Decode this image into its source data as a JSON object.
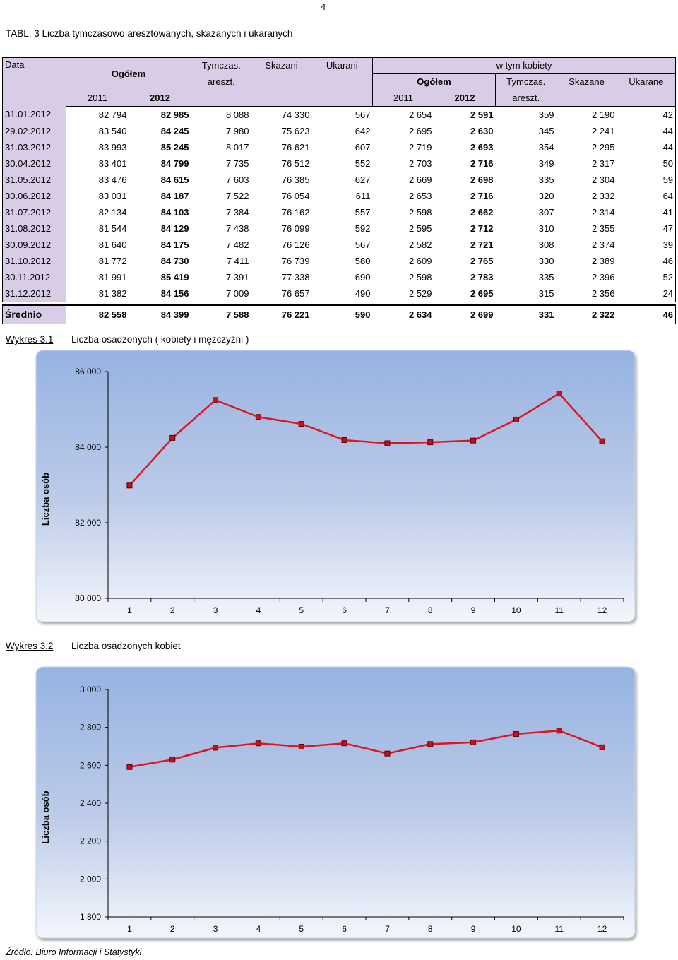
{
  "page_number": "4",
  "table": {
    "title": "TABL. 3 Liczba tymczasowo aresztowanych, skazanych i ukaranych",
    "headers": {
      "data": "Data",
      "ogolem": "Ogółem",
      "tymczas_1": "Tymczas.",
      "tymczas_2": "areszt.",
      "skazani": "Skazani",
      "ukarani": "Ukarani",
      "w_tym_kobiety": "w tym kobiety",
      "k_ogolem": "Ogółem",
      "k_tymczas_1": "Tymczas.",
      "k_tymczas_2": "areszt.",
      "k_skazane": "Skazane",
      "k_ukarane": "Ukarane",
      "y2011": "2011",
      "y2012": "2012",
      "k_y2011": "2011",
      "k_y2012": "2012"
    },
    "rows": [
      {
        "date": "31.01.2012",
        "o2011": "82 794",
        "o2012": "82 985",
        "tym": "8 088",
        "ska": "74 330",
        "uka": "567",
        "k2011": "2 654",
        "k2012": "2 591",
        "ktym": "359",
        "kska": "2 190",
        "kuka": "42"
      },
      {
        "date": "29.02.2012",
        "o2011": "83 540",
        "o2012": "84 245",
        "tym": "7 980",
        "ska": "75 623",
        "uka": "642",
        "k2011": "2 695",
        "k2012": "2 630",
        "ktym": "345",
        "kska": "2 241",
        "kuka": "44"
      },
      {
        "date": "31.03.2012",
        "o2011": "83 993",
        "o2012": "85 245",
        "tym": "8 017",
        "ska": "76 621",
        "uka": "607",
        "k2011": "2 719",
        "k2012": "2 693",
        "ktym": "354",
        "kska": "2 295",
        "kuka": "44"
      },
      {
        "date": "30.04.2012",
        "o2011": "83 401",
        "o2012": "84 799",
        "tym": "7 735",
        "ska": "76 512",
        "uka": "552",
        "k2011": "2 703",
        "k2012": "2 716",
        "ktym": "349",
        "kska": "2 317",
        "kuka": "50"
      },
      {
        "date": "31.05.2012",
        "o2011": "83 476",
        "o2012": "84 615",
        "tym": "7 603",
        "ska": "76 385",
        "uka": "627",
        "k2011": "2 669",
        "k2012": "2 698",
        "ktym": "335",
        "kska": "2 304",
        "kuka": "59"
      },
      {
        "date": "30.06.2012",
        "o2011": "83 031",
        "o2012": "84 187",
        "tym": "7 522",
        "ska": "76 054",
        "uka": "611",
        "k2011": "2 653",
        "k2012": "2 716",
        "ktym": "320",
        "kska": "2 332",
        "kuka": "64"
      },
      {
        "date": "31.07.2012",
        "o2011": "82 134",
        "o2012": "84 103",
        "tym": "7 384",
        "ska": "76 162",
        "uka": "557",
        "k2011": "2 598",
        "k2012": "2 662",
        "ktym": "307",
        "kska": "2 314",
        "kuka": "41"
      },
      {
        "date": "31.08.2012",
        "o2011": "81 544",
        "o2012": "84 129",
        "tym": "7 438",
        "ska": "76 099",
        "uka": "592",
        "k2011": "2 595",
        "k2012": "2 712",
        "ktym": "310",
        "kska": "2 355",
        "kuka": "47"
      },
      {
        "date": "30.09.2012",
        "o2011": "81 640",
        "o2012": "84 175",
        "tym": "7 482",
        "ska": "76 126",
        "uka": "567",
        "k2011": "2 582",
        "k2012": "2 721",
        "ktym": "308",
        "kska": "2 374",
        "kuka": "39"
      },
      {
        "date": "31.10.2012",
        "o2011": "81 772",
        "o2012": "84 730",
        "tym": "7 411",
        "ska": "76 739",
        "uka": "580",
        "k2011": "2 609",
        "k2012": "2 765",
        "ktym": "330",
        "kska": "2 389",
        "kuka": "46"
      },
      {
        "date": "30.11.2012",
        "o2011": "81 991",
        "o2012": "85 419",
        "tym": "7 391",
        "ska": "77 338",
        "uka": "690",
        "k2011": "2 598",
        "k2012": "2 783",
        "ktym": "335",
        "kska": "2 396",
        "kuka": "52"
      },
      {
        "date": "31.12.2012",
        "o2011": "81 382",
        "o2012": "84 156",
        "tym": "7 009",
        "ska": "76 657",
        "uka": "490",
        "k2011": "2 529",
        "k2012": "2 695",
        "ktym": "315",
        "kska": "2 356",
        "kuka": "24"
      }
    ],
    "average": {
      "date": "Średnio",
      "o2011": "82 558",
      "o2012": "84 399",
      "tym": "7 588",
      "ska": "76 221",
      "uka": "590",
      "k2011": "2 634",
      "k2012": "2 699",
      "ktym": "331",
      "kska": "2 322",
      "kuka": "46"
    }
  },
  "chart1_label": {
    "number": "Wykres 3.1",
    "text": "Liczba osadzonych ( kobiety i mężczyźni )"
  },
  "chart2_label": {
    "number": "Wykres 3.2",
    "text": "Liczba osadzonych kobiet"
  },
  "chart_data": [
    {
      "type": "line",
      "title": "Liczba osadzonych ( kobiety i mężczyźni )",
      "xlabel": "",
      "ylabel": "Liczba osób",
      "categories": [
        "1",
        "2",
        "3",
        "4",
        "5",
        "6",
        "7",
        "8",
        "9",
        "10",
        "11",
        "12"
      ],
      "values": [
        82985,
        84245,
        85245,
        84799,
        84615,
        84187,
        84103,
        84129,
        84175,
        84730,
        85419,
        84156
      ],
      "ylim": [
        80000,
        86000
      ],
      "yticks": [
        80000,
        82000,
        84000,
        86000
      ],
      "ytick_labels": [
        "80 000",
        "82 000",
        "84 000",
        "86 000"
      ],
      "line_color": "#e0141e",
      "marker_color": "#c8101a",
      "grid": false,
      "legend": "none"
    },
    {
      "type": "line",
      "title": "Liczba osadzonych kobiet",
      "xlabel": "",
      "ylabel": "Liczba osób",
      "categories": [
        "1",
        "2",
        "3",
        "4",
        "5",
        "6",
        "7",
        "8",
        "9",
        "10",
        "11",
        "12"
      ],
      "values": [
        2591,
        2630,
        2693,
        2716,
        2698,
        2716,
        2662,
        2712,
        2721,
        2765,
        2783,
        2695
      ],
      "ylim": [
        1800,
        3000
      ],
      "yticks": [
        1800,
        2000,
        2200,
        2400,
        2600,
        2800,
        3000
      ],
      "ytick_labels": [
        "1 800",
        "2 000",
        "2 200",
        "2 400",
        "2 600",
        "2 800",
        "3 000"
      ],
      "line_color": "#e0141e",
      "marker_color": "#c8101a",
      "grid": false,
      "legend": "none"
    }
  ],
  "source": "Źródło: Biuro Informacji i Statystyki"
}
